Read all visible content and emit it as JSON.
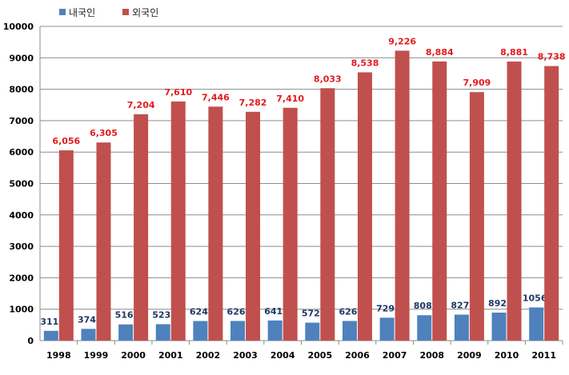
{
  "chart_data": {
    "type": "bar",
    "categories": [
      "1998",
      "1999",
      "2000",
      "2001",
      "2002",
      "2003",
      "2004",
      "2005",
      "2006",
      "2007",
      "2008",
      "2009",
      "2010",
      "2011"
    ],
    "series": [
      {
        "name": "내국인",
        "color": "#4F81BD",
        "label_color": "#1F3864",
        "values": [
          311,
          374,
          516,
          523,
          624,
          626,
          641,
          572,
          626,
          729,
          808,
          827,
          892,
          1056
        ],
        "labels": [
          "311",
          "374",
          "516",
          "523",
          "624",
          "626",
          "641",
          "572",
          "626",
          "729",
          "808",
          "827",
          "892",
          "1056"
        ]
      },
      {
        "name": "외국인",
        "color": "#C0504D",
        "label_color": "#E31A1C",
        "values": [
          6056,
          6305,
          7204,
          7610,
          7446,
          7282,
          7410,
          8033,
          8538,
          9226,
          8884,
          7909,
          8881,
          8738
        ],
        "labels": [
          "6,056",
          "6,305",
          "7,204",
          "7,610",
          "7,446",
          "7,282",
          "7,410",
          "8,033",
          "8,538",
          "9,226",
          "8,884",
          "7,909",
          "8,881",
          "8,738"
        ]
      }
    ],
    "ylim": [
      0,
      10000
    ],
    "yticks": [
      "0",
      "1000",
      "2000",
      "3000",
      "4000",
      "5000",
      "6000",
      "7000",
      "8000",
      "9000",
      "10000"
    ],
    "grid": true,
    "legend_position": "top-left"
  }
}
